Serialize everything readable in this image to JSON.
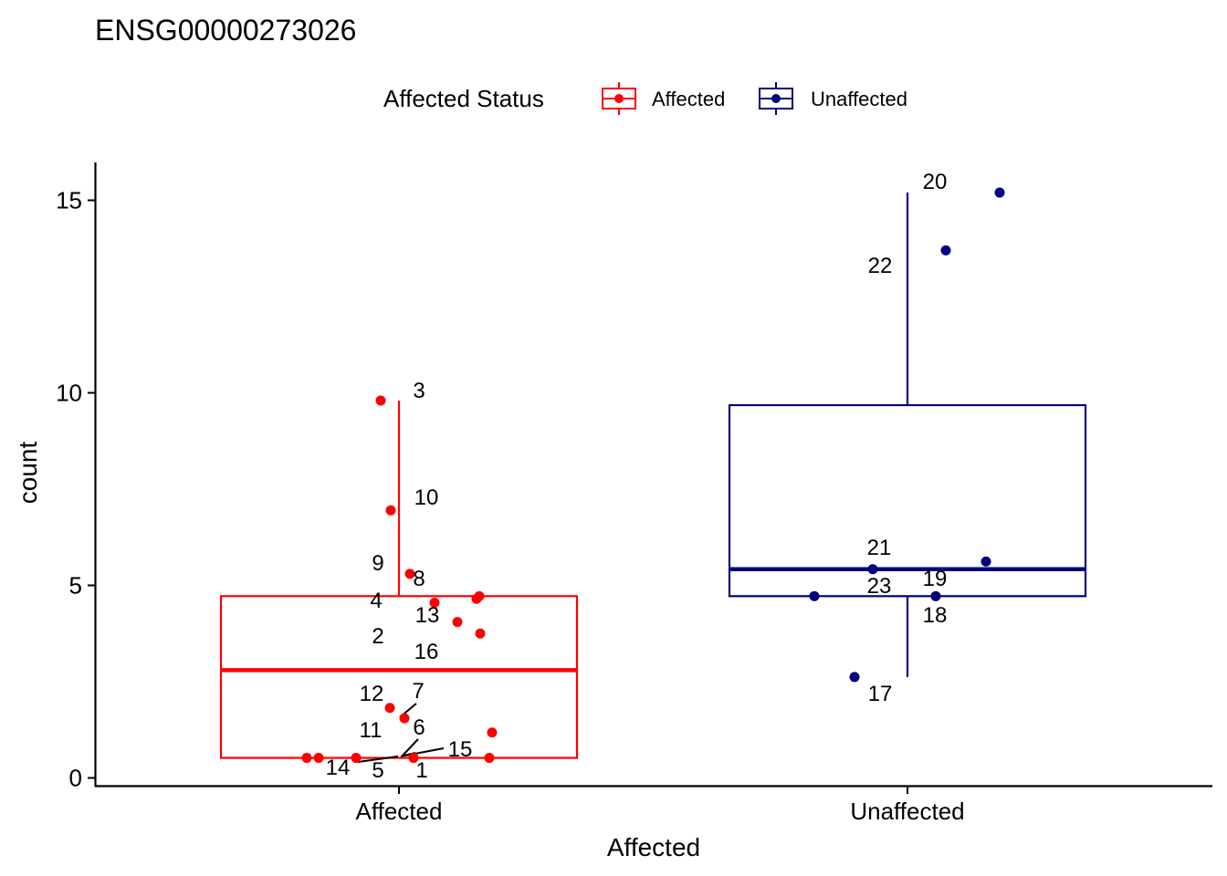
{
  "chart_data": {
    "type": "box",
    "title": "ENSG00000273026",
    "xlabel": "Affected",
    "ylabel": "count",
    "categories": [
      "Affected",
      "Unaffected"
    ],
    "ylim": [
      -0.2,
      16.0
    ],
    "yticks": [
      0,
      5,
      10,
      15
    ],
    "grid": false,
    "legend": {
      "title": "Affected Status",
      "position": "top",
      "entries": [
        "Affected",
        "Unaffected"
      ]
    },
    "series": [
      {
        "name": "Affected",
        "color": "#FF0000",
        "box": {
          "q1": 0.52,
          "median": 2.8,
          "q3": 4.72,
          "whisker_low": 0.52,
          "whisker_high": 9.8
        },
        "points": [
          {
            "label": "1",
            "y": 0.52
          },
          {
            "label": "2",
            "y": 3.75
          },
          {
            "label": "3",
            "y": 9.8
          },
          {
            "label": "4",
            "y": 4.55
          },
          {
            "label": "5",
            "y": 0.52
          },
          {
            "label": "6",
            "y": 0.52
          },
          {
            "label": "7",
            "y": 1.55
          },
          {
            "label": "8",
            "y": 4.72
          },
          {
            "label": "9",
            "y": 5.3
          },
          {
            "label": "10",
            "y": 6.95
          },
          {
            "label": "11",
            "y": 1.82
          },
          {
            "label": "12",
            "y": 4.65
          },
          {
            "label": "13",
            "y": 4.05
          },
          {
            "label": "14",
            "y": 0.52
          },
          {
            "label": "15",
            "y": 1.18
          },
          {
            "label": "16",
            "y": 0.52
          }
        ]
      },
      {
        "name": "Unaffected",
        "color": "#000080",
        "box": {
          "q1": 4.72,
          "median": 5.42,
          "q3": 9.68,
          "whisker_low": 2.62,
          "whisker_high": 15.2
        },
        "points": [
          {
            "label": "17",
            "y": 2.62
          },
          {
            "label": "18",
            "y": 4.72
          },
          {
            "label": "19",
            "y": 5.62
          },
          {
            "label": "20",
            "y": 15.2
          },
          {
            "label": "21",
            "y": 5.42
          },
          {
            "label": "22",
            "y": 13.7
          },
          {
            "label": "23",
            "y": 4.72
          }
        ]
      }
    ]
  }
}
